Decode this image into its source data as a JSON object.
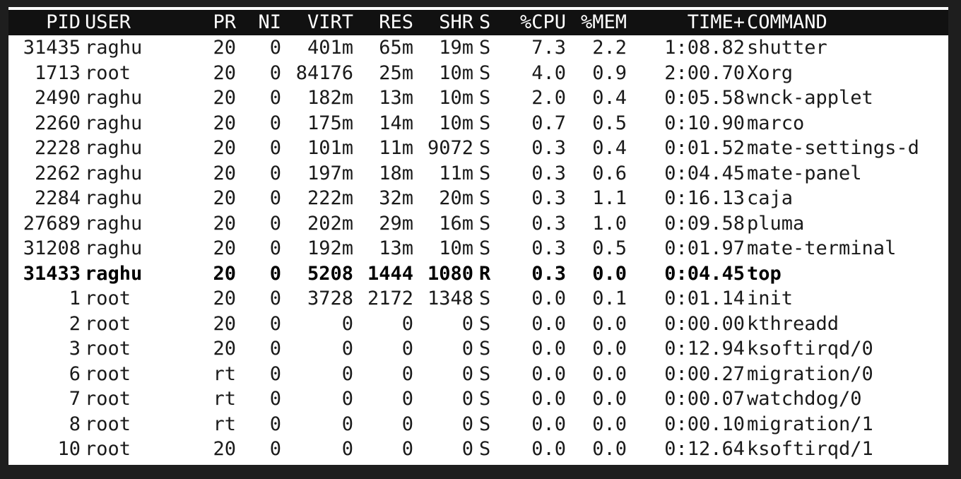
{
  "header": {
    "pid": "PID",
    "user": "USER",
    "pr": "PR",
    "ni": "NI",
    "virt": "VIRT",
    "res": "RES",
    "shr": "SHR",
    "s": "S",
    "cpu": "%CPU",
    "mem": "%MEM",
    "time": "TIME+",
    "command": "COMMAND"
  },
  "processes": [
    {
      "pid": "31435",
      "user": "raghu",
      "pr": "20",
      "ni": "0",
      "virt": "401m",
      "res": "65m",
      "shr": "19m",
      "s": "S",
      "cpu": "7.3",
      "mem": "2.2",
      "time": "1:08.82",
      "command": "shutter"
    },
    {
      "pid": "1713",
      "user": "root",
      "pr": "20",
      "ni": "0",
      "virt": "84176",
      "res": "25m",
      "shr": "10m",
      "s": "S",
      "cpu": "4.0",
      "mem": "0.9",
      "time": "2:00.70",
      "command": "Xorg"
    },
    {
      "pid": "2490",
      "user": "raghu",
      "pr": "20",
      "ni": "0",
      "virt": "182m",
      "res": "13m",
      "shr": "10m",
      "s": "S",
      "cpu": "2.0",
      "mem": "0.4",
      "time": "0:05.58",
      "command": "wnck-applet"
    },
    {
      "pid": "2260",
      "user": "raghu",
      "pr": "20",
      "ni": "0",
      "virt": "175m",
      "res": "14m",
      "shr": "10m",
      "s": "S",
      "cpu": "0.7",
      "mem": "0.5",
      "time": "0:10.90",
      "command": "marco"
    },
    {
      "pid": "2228",
      "user": "raghu",
      "pr": "20",
      "ni": "0",
      "virt": "101m",
      "res": "11m",
      "shr": "9072",
      "s": "S",
      "cpu": "0.3",
      "mem": "0.4",
      "time": "0:01.52",
      "command": "mate-settings-d"
    },
    {
      "pid": "2262",
      "user": "raghu",
      "pr": "20",
      "ni": "0",
      "virt": "197m",
      "res": "18m",
      "shr": "11m",
      "s": "S",
      "cpu": "0.3",
      "mem": "0.6",
      "time": "0:04.45",
      "command": "mate-panel"
    },
    {
      "pid": "2284",
      "user": "raghu",
      "pr": "20",
      "ni": "0",
      "virt": "222m",
      "res": "32m",
      "shr": "20m",
      "s": "S",
      "cpu": "0.3",
      "mem": "1.1",
      "time": "0:16.13",
      "command": "caja"
    },
    {
      "pid": "27689",
      "user": "raghu",
      "pr": "20",
      "ni": "0",
      "virt": "202m",
      "res": "29m",
      "shr": "16m",
      "s": "S",
      "cpu": "0.3",
      "mem": "1.0",
      "time": "0:09.58",
      "command": "pluma"
    },
    {
      "pid": "31208",
      "user": "raghu",
      "pr": "20",
      "ni": "0",
      "virt": "192m",
      "res": "13m",
      "shr": "10m",
      "s": "S",
      "cpu": "0.3",
      "mem": "0.5",
      "time": "0:01.97",
      "command": "mate-terminal"
    },
    {
      "pid": "31433",
      "user": "raghu",
      "pr": "20",
      "ni": "0",
      "virt": "5208",
      "res": "1444",
      "shr": "1080",
      "s": "R",
      "cpu": "0.3",
      "mem": "0.0",
      "time": "0:04.45",
      "command": "top",
      "bold": true
    },
    {
      "pid": "1",
      "user": "root",
      "pr": "20",
      "ni": "0",
      "virt": "3728",
      "res": "2172",
      "shr": "1348",
      "s": "S",
      "cpu": "0.0",
      "mem": "0.1",
      "time": "0:01.14",
      "command": "init"
    },
    {
      "pid": "2",
      "user": "root",
      "pr": "20",
      "ni": "0",
      "virt": "0",
      "res": "0",
      "shr": "0",
      "s": "S",
      "cpu": "0.0",
      "mem": "0.0",
      "time": "0:00.00",
      "command": "kthreadd"
    },
    {
      "pid": "3",
      "user": "root",
      "pr": "20",
      "ni": "0",
      "virt": "0",
      "res": "0",
      "shr": "0",
      "s": "S",
      "cpu": "0.0",
      "mem": "0.0",
      "time": "0:12.94",
      "command": "ksoftirqd/0"
    },
    {
      "pid": "6",
      "user": "root",
      "pr": "rt",
      "ni": "0",
      "virt": "0",
      "res": "0",
      "shr": "0",
      "s": "S",
      "cpu": "0.0",
      "mem": "0.0",
      "time": "0:00.27",
      "command": "migration/0"
    },
    {
      "pid": "7",
      "user": "root",
      "pr": "rt",
      "ni": "0",
      "virt": "0",
      "res": "0",
      "shr": "0",
      "s": "S",
      "cpu": "0.0",
      "mem": "0.0",
      "time": "0:00.07",
      "command": "watchdog/0"
    },
    {
      "pid": "8",
      "user": "root",
      "pr": "rt",
      "ni": "0",
      "virt": "0",
      "res": "0",
      "shr": "0",
      "s": "S",
      "cpu": "0.0",
      "mem": "0.0",
      "time": "0:00.10",
      "command": "migration/1"
    },
    {
      "pid": "10",
      "user": "root",
      "pr": "20",
      "ni": "0",
      "virt": "0",
      "res": "0",
      "shr": "0",
      "s": "S",
      "cpu": "0.0",
      "mem": "0.0",
      "time": "0:12.64",
      "command": "ksoftirqd/1"
    }
  ],
  "colors": {
    "header_bg": "#111111",
    "header_fg": "#ffffff",
    "body_bg": "#ffffff",
    "body_fg": "#1a1a1a",
    "frame_bg": "#1e1e1e"
  }
}
